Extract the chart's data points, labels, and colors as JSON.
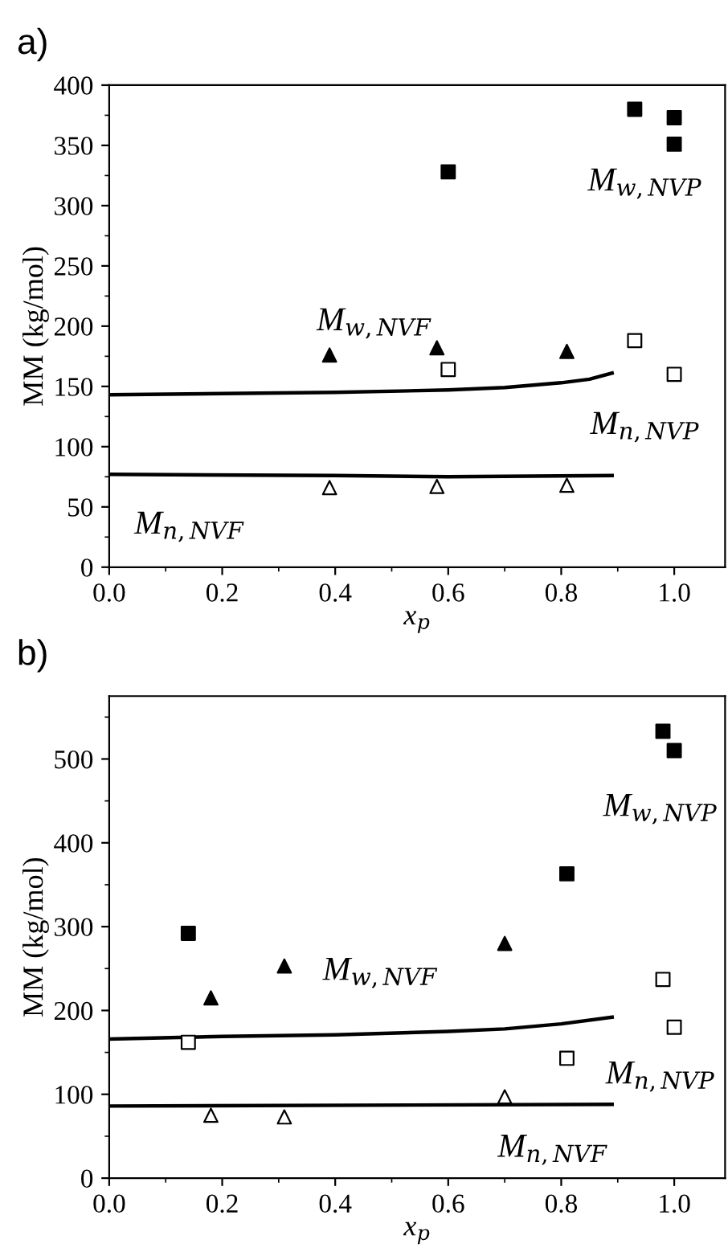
{
  "chart_data": [
    {
      "type": "scatter",
      "title": "a)",
      "xlabel": "x$_{p}$",
      "ylabel": "MM (kg/mol)",
      "xlim": [
        0,
        1.09
      ],
      "ylim": [
        0,
        400
      ],
      "xticks": [
        {
          "value": 0,
          "label": "0.0"
        },
        {
          "value": 0.2,
          "label": "0.2"
        },
        {
          "value": 0.4,
          "label": "0.4"
        },
        {
          "value": 0.6,
          "label": "0.6"
        },
        {
          "value": 0.8,
          "label": "0.8"
        },
        {
          "value": 1,
          "label": "1.0"
        }
      ],
      "yticks": [
        0,
        50,
        100,
        150,
        200,
        250,
        300,
        350,
        400
      ],
      "grid": false,
      "series": [
        {
          "type": "scatter",
          "marker": "square",
          "color": "#000000",
          "x": [
            0.6,
            0.93,
            1.0,
            1.0
          ],
          "values": [
            328,
            380,
            373,
            351
          ]
        },
        {
          "type": "scatter",
          "marker": "square",
          "color": "#ffffff",
          "x": [
            0.6,
            0.93,
            1.0
          ],
          "values": [
            164,
            188,
            160
          ]
        },
        {
          "type": "scatter",
          "marker": "triangle",
          "color": "#000000",
          "x": [
            0.39,
            0.58,
            0.81
          ],
          "values": [
            176,
            182,
            179
          ]
        },
        {
          "type": "scatter",
          "marker": "triangle",
          "color": "#ffffff",
          "x": [
            0.39,
            0.58,
            0.81
          ],
          "values": [
            66,
            67,
            68
          ]
        },
        {
          "type": "line",
          "line_style": "solid",
          "color": "#000000",
          "x": [
            0,
            0.2,
            0.4,
            0.6,
            0.7,
            0.8,
            0.85,
            0.89
          ],
          "values": [
            143,
            144,
            145,
            147,
            149,
            153,
            156,
            161
          ]
        },
        {
          "type": "line",
          "line_style": "solid",
          "color": "#000000",
          "x": [
            0,
            0.4,
            0.6,
            0.89
          ],
          "values": [
            77,
            76,
            75,
            76
          ]
        }
      ],
      "annotations": [
        "M$_{w,NVP}$",
        "M$_{n,NVP}$",
        "M$_{w,NVF}$",
        "M$_{n,NVF}$"
      ]
    },
    {
      "type": "scatter",
      "title": "b)",
      "xlabel": "x$_{p}$",
      "ylabel": "MM (kg/mol)",
      "xlim": [
        0,
        1.09
      ],
      "ylim": [
        0,
        575
      ],
      "xticks": [
        {
          "value": 0,
          "label": "0.0"
        },
        {
          "value": 0.2,
          "label": "0.2"
        },
        {
          "value": 0.4,
          "label": "0.4"
        },
        {
          "value": 0.6,
          "label": "0.6"
        },
        {
          "value": 0.8,
          "label": "0.8"
        },
        {
          "value": 1,
          "label": "1.0"
        }
      ],
      "yticks": [
        0,
        100,
        200,
        300,
        400,
        500
      ],
      "grid": false,
      "series": [
        {
          "type": "scatter",
          "marker": "square",
          "color": "#000000",
          "x": [
            0.14,
            0.81,
            0.98,
            1.0
          ],
          "values": [
            292,
            363,
            533,
            510
          ]
        },
        {
          "type": "scatter",
          "marker": "square",
          "color": "#ffffff",
          "x": [
            0.14,
            0.81,
            0.98,
            1.0
          ],
          "values": [
            162,
            143,
            237,
            180
          ]
        },
        {
          "type": "scatter",
          "marker": "triangle",
          "color": "#000000",
          "x": [
            0.18,
            0.31,
            0.7
          ],
          "values": [
            215,
            253,
            280
          ]
        },
        {
          "type": "scatter",
          "marker": "triangle",
          "color": "#ffffff",
          "x": [
            0.18,
            0.31,
            0.7
          ],
          "values": [
            75,
            73,
            97
          ]
        },
        {
          "type": "line",
          "line_style": "solid",
          "color": "#000000",
          "x": [
            0,
            0.2,
            0.4,
            0.6,
            0.7,
            0.8,
            0.89
          ],
          "values": [
            166,
            169,
            171,
            175,
            178,
            184,
            192
          ]
        },
        {
          "type": "line",
          "line_style": "solid",
          "color": "#000000",
          "x": [
            0,
            0.89
          ],
          "values": [
            86,
            88
          ]
        }
      ],
      "annotations": [
        "M$_{w,NVP}$",
        "M$_{n,NVP}$",
        "M$_{w,NVF}$",
        "M$_{n,NVF}$"
      ]
    }
  ]
}
